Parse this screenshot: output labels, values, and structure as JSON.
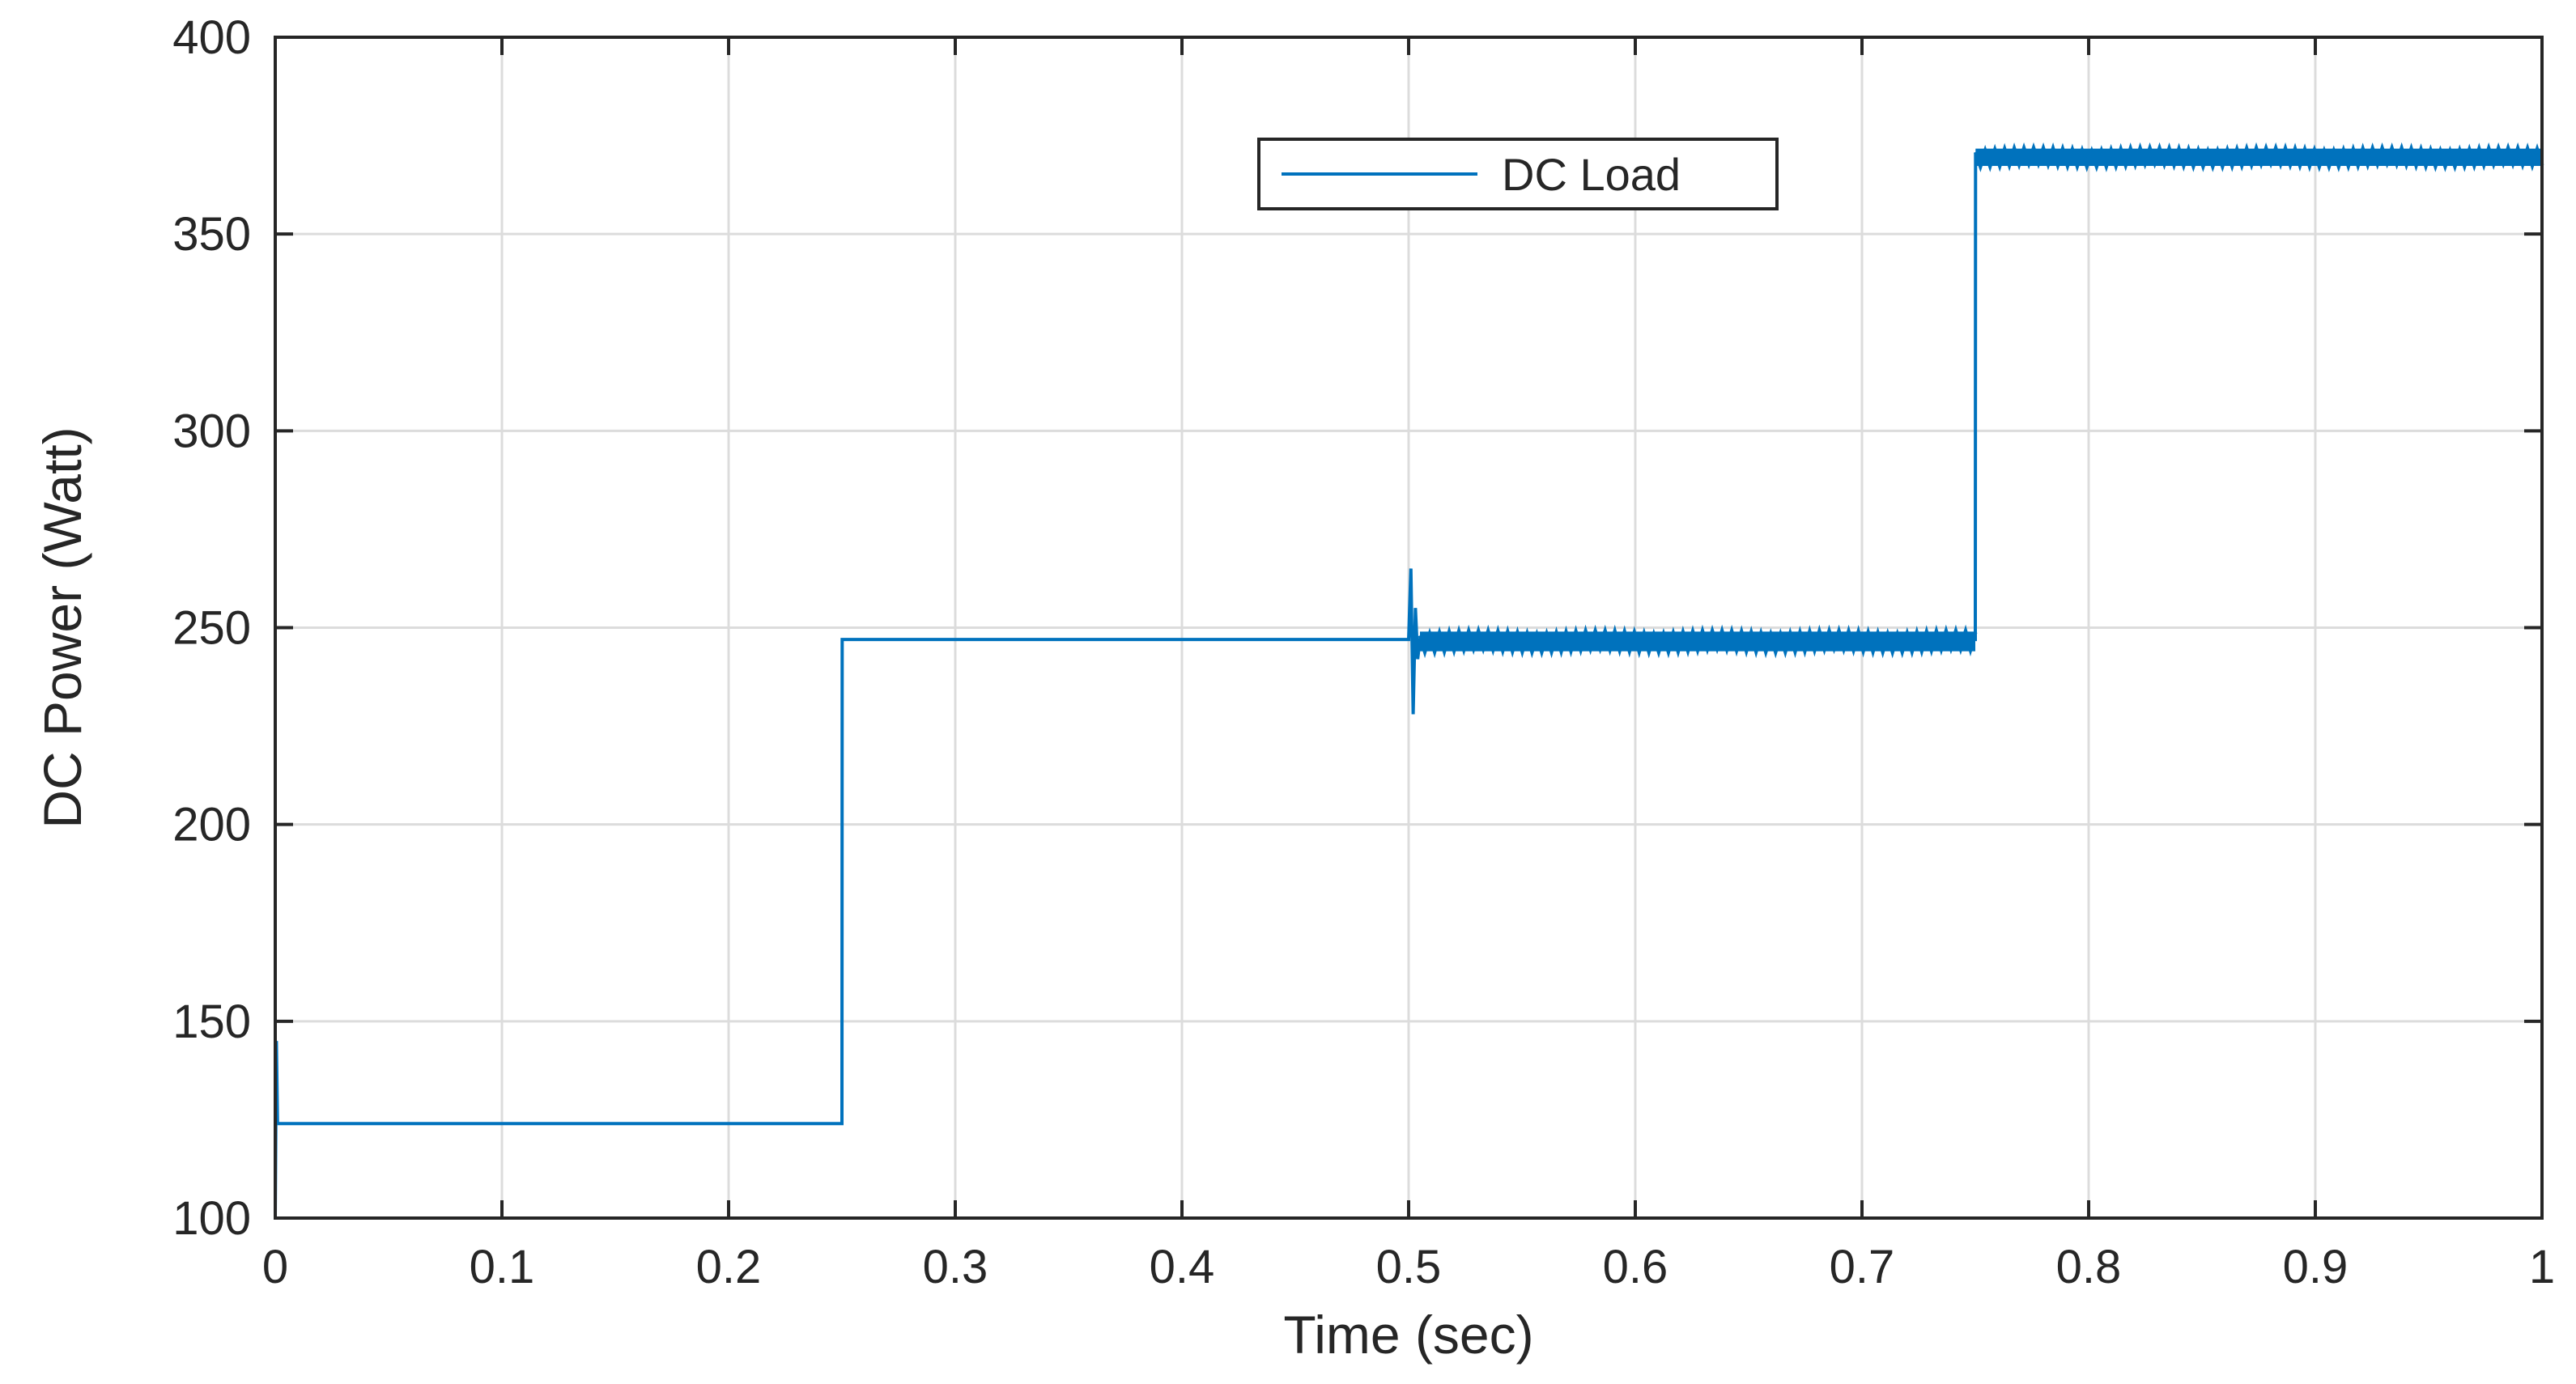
{
  "chart_data": {
    "type": "line",
    "title": "",
    "xlabel": "Time (sec)",
    "ylabel": "DC Power (Watt)",
    "xlim": [
      0,
      1
    ],
    "ylim": [
      100,
      400
    ],
    "x_ticks": [
      "0",
      "0.1",
      "0.2",
      "0.3",
      "0.4",
      "0.5",
      "0.6",
      "0.7",
      "0.8",
      "0.9",
      "1"
    ],
    "y_ticks": [
      "100",
      "150",
      "200",
      "250",
      "300",
      "350",
      "400"
    ],
    "grid": true,
    "legend_position": "top-center",
    "series": [
      {
        "name": "DC Load",
        "color": "#0072BD",
        "x": [
          0,
          0.0005,
          0.001,
          0.25,
          0.2501,
          0.5,
          0.501,
          0.502,
          0.503,
          0.504,
          0.505,
          0.75,
          0.7501,
          1.0
        ],
        "y": [
          100,
          145,
          124,
          124,
          247,
          247,
          265,
          228,
          255,
          242,
          247,
          247,
          370,
          370
        ],
        "noise_segments": [
          {
            "x_start": 0.505,
            "x_end": 0.75,
            "center": 246.5,
            "amplitude": 2.5
          },
          {
            "x_start": 0.7501,
            "x_end": 1.0,
            "center": 369.5,
            "amplitude": 2.2
          }
        ]
      }
    ]
  }
}
